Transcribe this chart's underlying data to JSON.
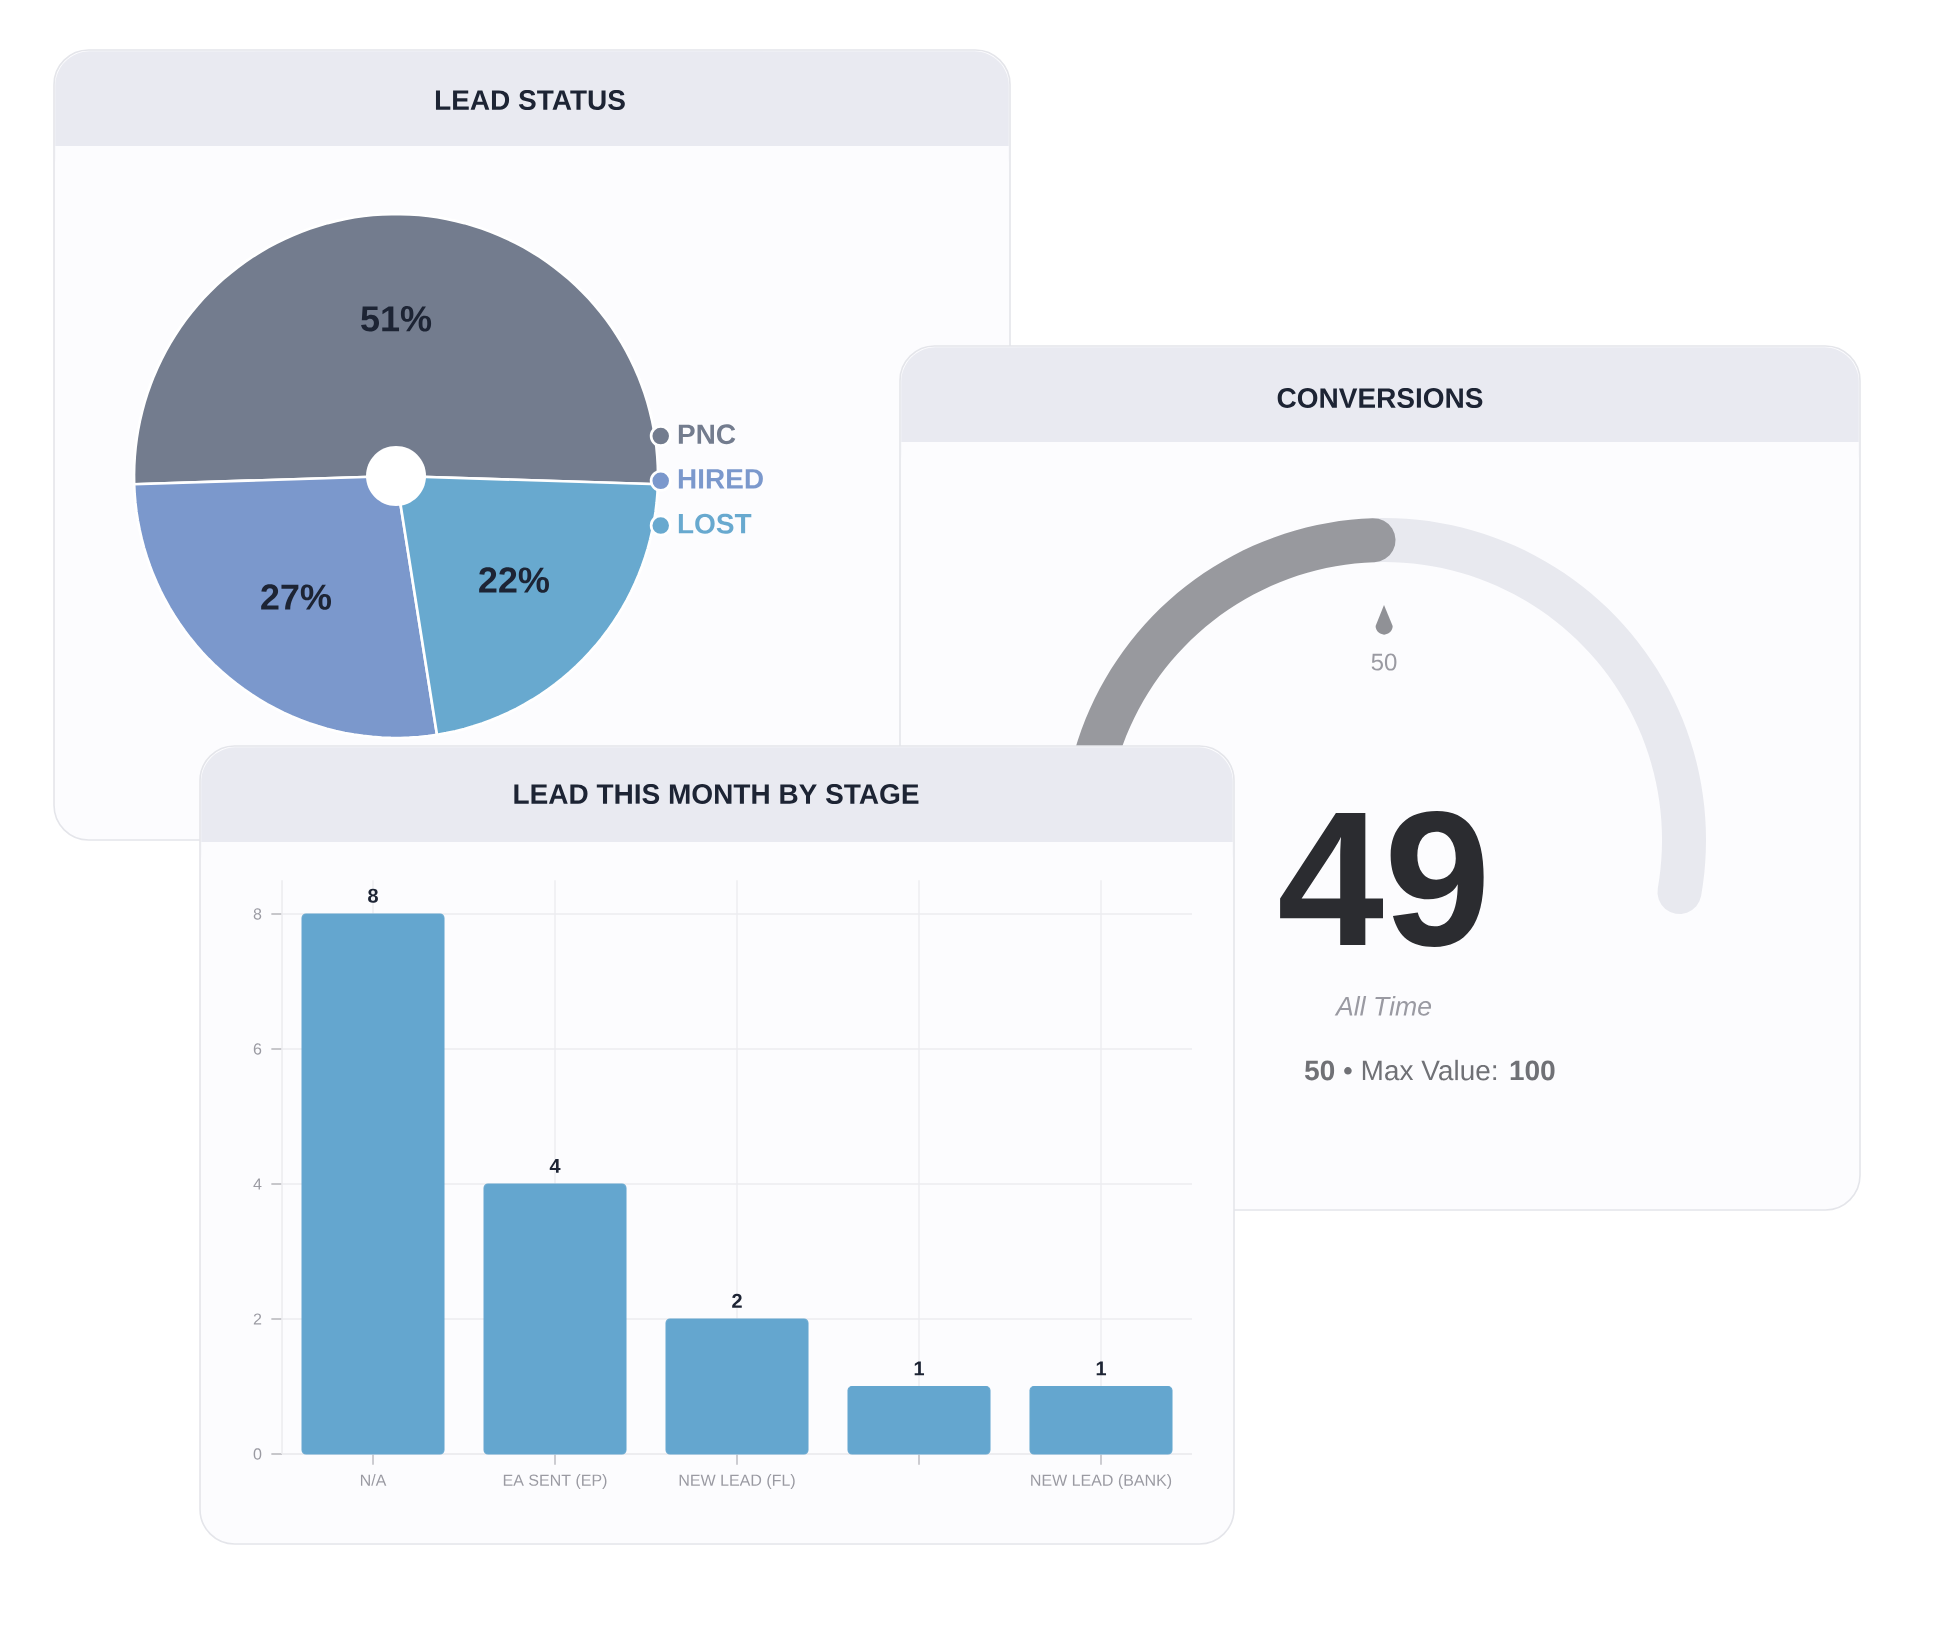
{
  "chart_data": [
    {
      "type": "pie",
      "title": "LEAD STATUS",
      "categories": [
        "PNC",
        "HIRED",
        "LOST"
      ],
      "values": [
        51,
        27,
        22
      ],
      "colors": [
        "#737c8e",
        "#7b98cc",
        "#68a9cf"
      ],
      "value_labels": [
        "51%",
        "27%",
        "22%"
      ],
      "legend": "right"
    },
    {
      "type": "donut",
      "title": "CONVERSIONS",
      "categories": [
        null,
        null
      ],
      "values": [
        49,
        51
      ],
      "colors": [
        "#98999e",
        "#e8e9ef"
      ],
      "annotations": [
        "50",
        "49",
        "All Time",
        "**50** • Max Value: **100**"
      ]
    },
    {
      "type": "bar",
      "title": "LEAD THIS MONTH BY STAGE",
      "categories": [
        "N/A",
        "EA SENT (EP)",
        "NEW LEAD (FL)",
        null,
        "NEW LEAD (BANK)"
      ],
      "values": [
        8,
        4,
        2,
        1,
        1
      ],
      "color": "#64a6cf",
      "ylim": [
        0,
        8.5
      ],
      "yticks": [
        0,
        2,
        4,
        6,
        8
      ],
      "grid": true,
      "data_labels": true
    }
  ]
}
